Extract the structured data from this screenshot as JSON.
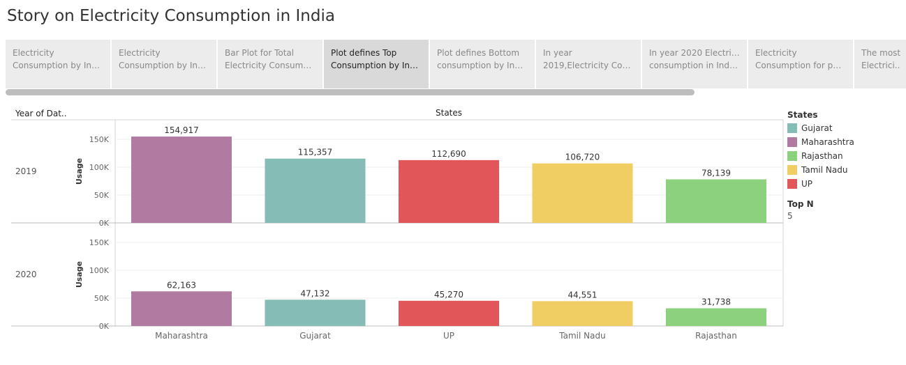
{
  "story": {
    "title": "Story on Electricity Consumption in India"
  },
  "tabs": [
    {
      "line1": "Electricity",
      "line2": "Consumption by India..",
      "active": false
    },
    {
      "line1": "Electricity",
      "line2": "Consumption by India..",
      "active": false
    },
    {
      "line1": "Bar Plot for Total",
      "line2": "Electricity Consumpti..",
      "active": false
    },
    {
      "line1": "Plot defines Top",
      "line2": "Consumption by India..",
      "active": true
    },
    {
      "line1": "Plot defines Bottom",
      "line2": "consumption by India..",
      "active": false
    },
    {
      "line1": "In year",
      "line2": "2019,Electricity Cons..",
      "active": false
    },
    {
      "line1": "In year 2020 Electricity",
      "line2": "consumption in India ..",
      "active": false
    },
    {
      "line1": "Electricity",
      "line2": "Consumption for peri..",
      "active": false
    },
    {
      "line1": "The most",
      "line2": "Electrici..",
      "active": false
    }
  ],
  "headers": {
    "row_field": "Year of Dat..",
    "column_field": "States"
  },
  "legend": {
    "title": "States",
    "items": [
      {
        "label": "Gujarat",
        "color": "#86bcb6"
      },
      {
        "label": "Maharashtra",
        "color": "#b07aa1"
      },
      {
        "label": "Rajasthan",
        "color": "#8cd17d"
      },
      {
        "label": "Tamil Nadu",
        "color": "#f1ce63"
      },
      {
        "label": "UP",
        "color": "#e15759"
      }
    ]
  },
  "topn": {
    "label": "Top N",
    "value": "5"
  },
  "chart_data": {
    "type": "bar",
    "categories": [
      "Maharashtra",
      "Gujarat",
      "UP",
      "Tamil Nadu",
      "Rajasthan"
    ],
    "category_colors": [
      "#b07aa1",
      "#86bcb6",
      "#e15759",
      "#f1ce63",
      "#8cd17d"
    ],
    "ylabel": "Usage",
    "ylim": [
      0,
      160000
    ],
    "yticks": [
      0,
      50000,
      100000,
      150000
    ],
    "ytick_labels": [
      "0K",
      "50K",
      "100K",
      "150K"
    ],
    "panels": [
      {
        "year": "2019",
        "values": [
          154917,
          115357,
          112690,
          106720,
          78139
        ],
        "value_labels": [
          "154,917",
          "115,357",
          "112,690",
          "106,720",
          "78,139"
        ]
      },
      {
        "year": "2020",
        "values": [
          62163,
          47132,
          45270,
          44551,
          31738
        ],
        "value_labels": [
          "62,163",
          "47,132",
          "45,270",
          "44,551",
          "31,738"
        ]
      }
    ]
  }
}
